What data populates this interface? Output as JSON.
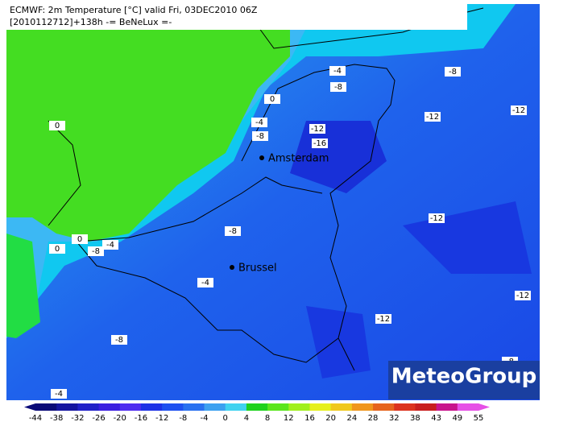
{
  "header": {
    "lines": [
      "ECMWF: 2m Temperature [°C] valid Fri, 03DEC2010 06Z",
      "[2010112712]+138h  -= BeNeLux =-"
    ]
  },
  "cities": [
    "Amsterdam",
    "Brussel"
  ],
  "contour_labels": [
    "-4",
    "-8",
    "-8",
    "0",
    "-4",
    "-12",
    "-12",
    "-12",
    "-8",
    "-16",
    "0",
    "-12",
    "0",
    "-8",
    "-4",
    "-8",
    "0",
    "-4",
    "-12",
    "-12",
    "-8",
    "-4",
    "-8"
  ],
  "logo": "MeteoGroup",
  "colorbar": {
    "ticks": [
      -44,
      -38,
      -32,
      -26,
      -20,
      -16,
      -12,
      -8,
      -4,
      0,
      4,
      8,
      12,
      16,
      20,
      24,
      28,
      32,
      38,
      43,
      49,
      55
    ],
    "colors": [
      "#0a0a78",
      "#1414a0",
      "#2020c8",
      "#3a1ee0",
      "#4e2cf0",
      "#1e32e6",
      "#1e50f0",
      "#2870f0",
      "#3ca0f0",
      "#40d2f0",
      "#1ed21e",
      "#5ae61e",
      "#a0f01e",
      "#e6f01e",
      "#f0c81e",
      "#f0961e",
      "#e6641e",
      "#dc321e",
      "#c81e1e",
      "#c8148c",
      "#e650e6"
    ]
  }
}
